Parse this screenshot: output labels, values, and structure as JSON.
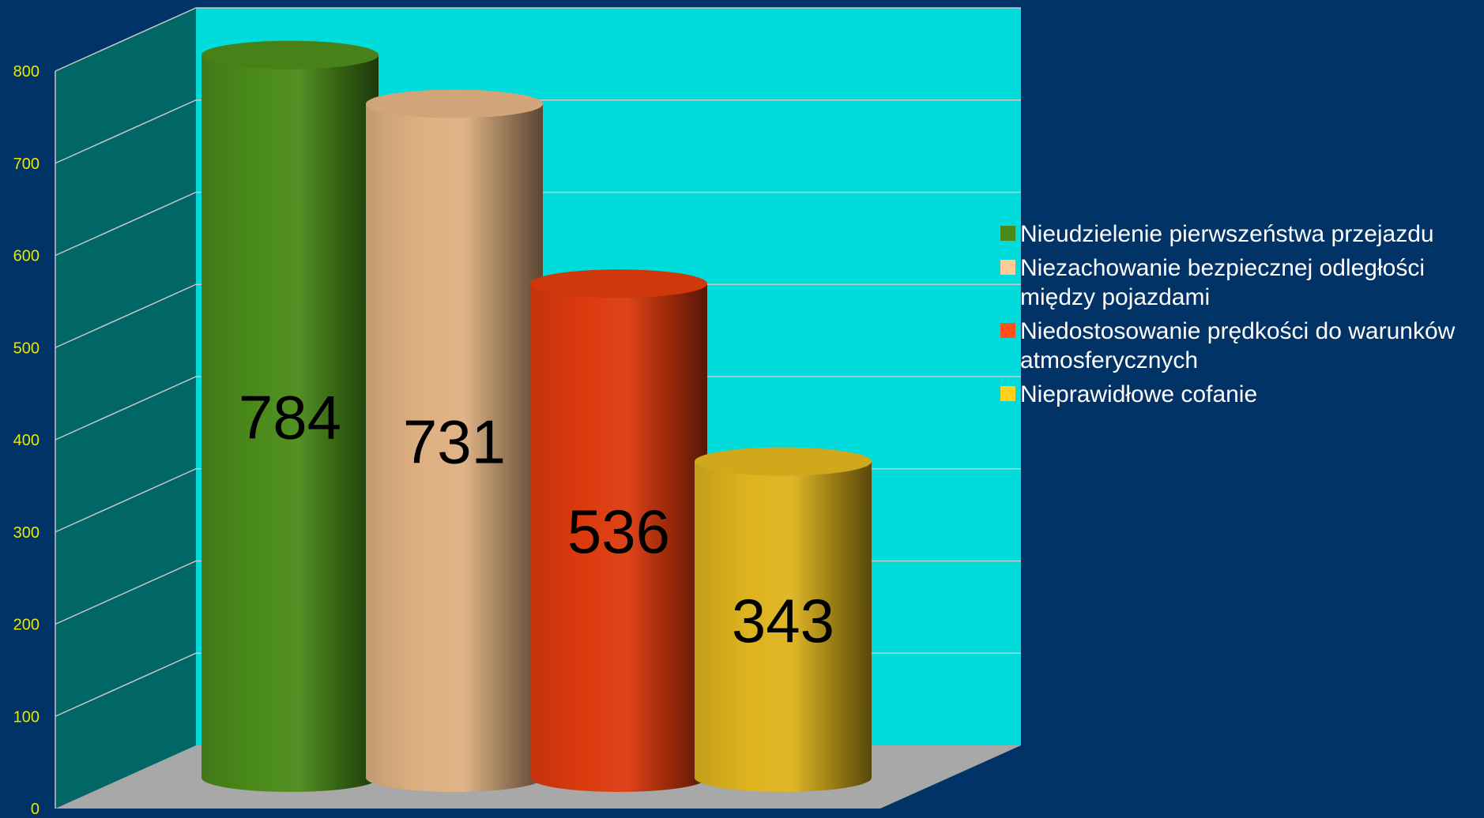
{
  "chart_data": {
    "type": "bar",
    "style": "3d-cylinder",
    "title": "",
    "xlabel": "",
    "ylabel": "",
    "categories": [
      "Nieudzielenie pierwszeństwa przejazdu",
      "Niezachowanie bezpiecznej odległości między pojazdami",
      "Niedostosowanie prędkości do warunków atmosferycznych",
      "Nieprawidłowe cofanie"
    ],
    "values": [
      784,
      731,
      536,
      343
    ],
    "data_labels": [
      "784",
      "731",
      "536",
      "343"
    ],
    "colors": [
      "#4a8a1a",
      "#deb081",
      "#dc3a0e",
      "#ddb31e"
    ],
    "ylim": [
      0,
      800
    ],
    "yticks": [
      "0",
      "100",
      "200",
      "300",
      "400",
      "500",
      "600",
      "700",
      "800"
    ],
    "grid": true,
    "legend_position": "right",
    "background_color": "#023366",
    "back_wall_color": "#00dcdc",
    "side_wall_color": "#006666",
    "floor_color": "#a8a8a8"
  },
  "legend": {
    "items": [
      {
        "label": "Nieudzielenie pierwszeństwa przejazdu",
        "color": "#4a8a1a"
      },
      {
        "label": "Niezachowanie bezpiecznej odległości między pojazdami",
        "color": "#ffcc99"
      },
      {
        "label": "Niedostosowanie prędkości do warunków atmosferycznych",
        "color": "#ff4f1a"
      },
      {
        "label": "Nieprawidłowe cofanie",
        "color": "#ffd11a"
      }
    ]
  }
}
